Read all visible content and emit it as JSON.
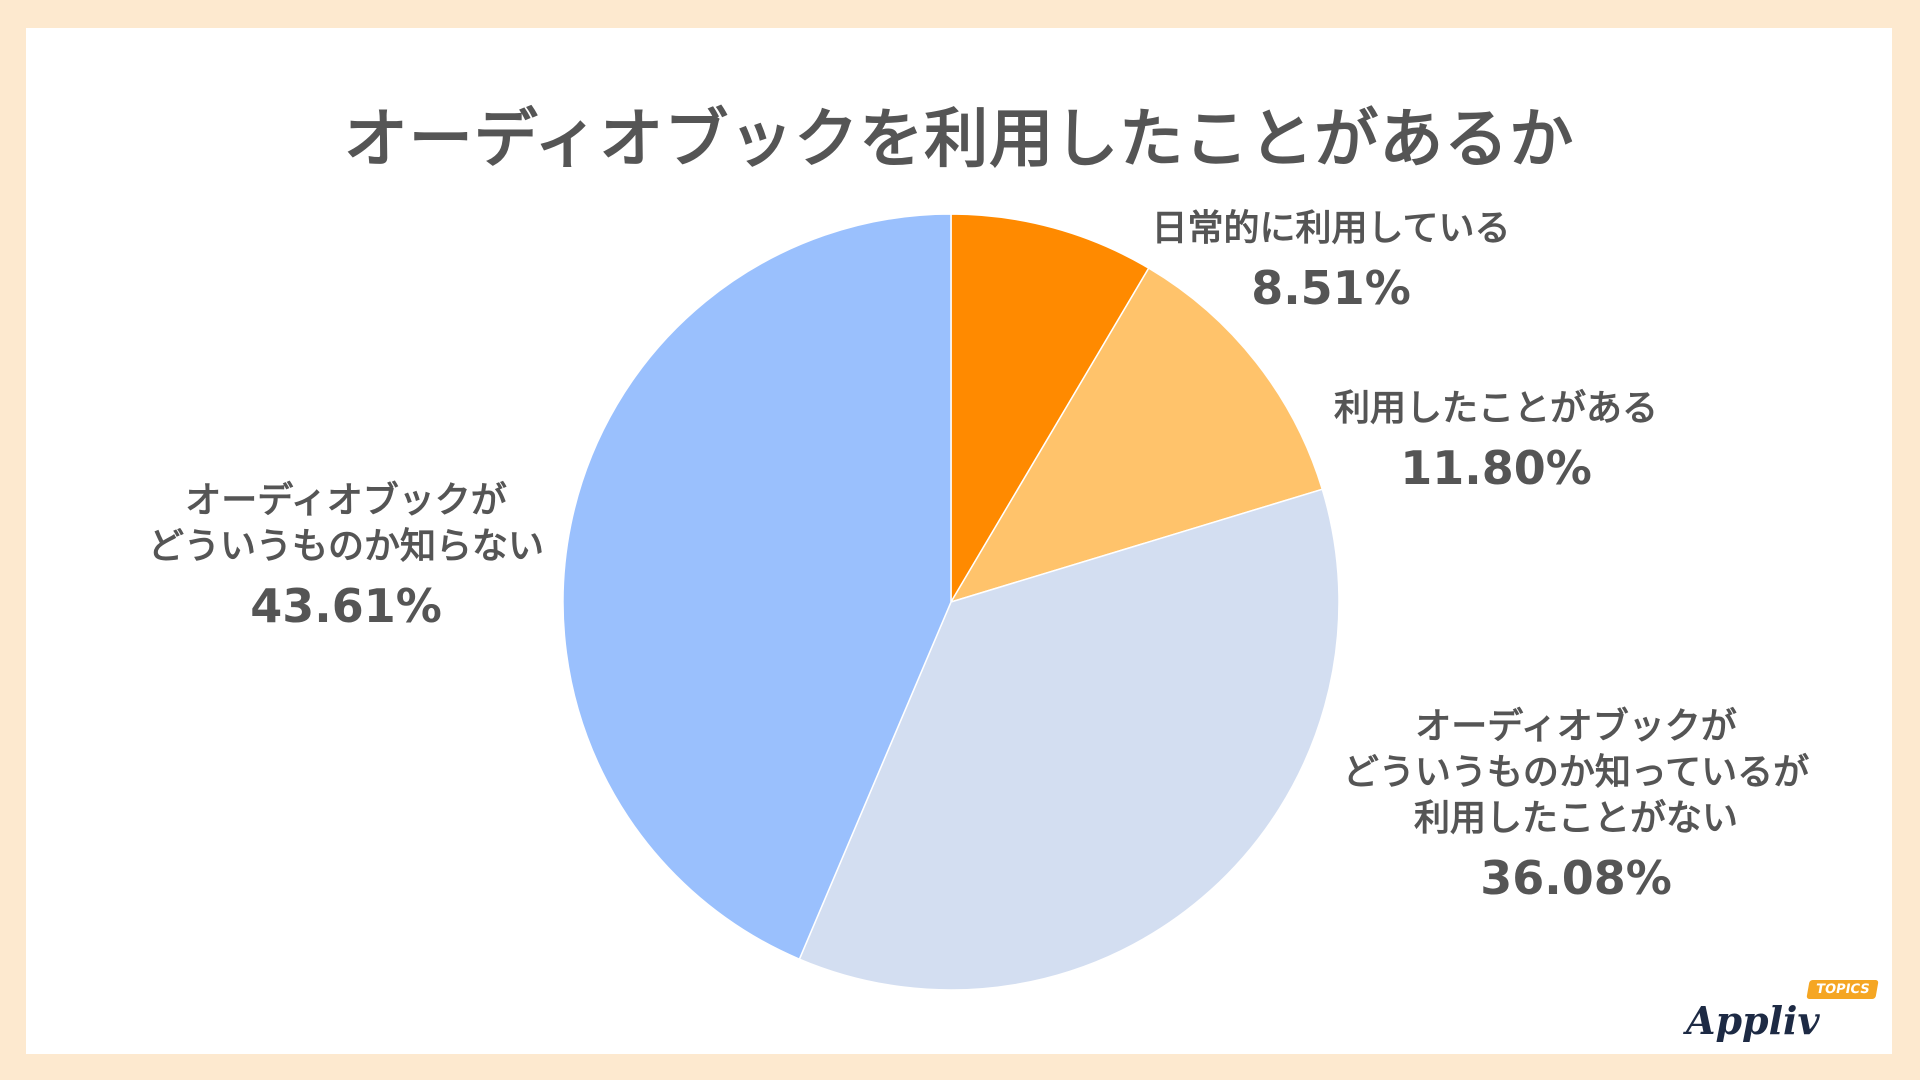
{
  "chart_data": {
    "type": "pie",
    "title": "オーディオブックを利用したことがあるか",
    "start_angle_deg": 0,
    "direction": "clockwise",
    "slices": [
      {
        "label": "日常的に利用している",
        "value": 8.51,
        "value_label": "8.51%",
        "color": "#ff8a00"
      },
      {
        "label": "利用したことがある",
        "value": 11.8,
        "value_label": "11.80%",
        "color": "#ffc36b"
      },
      {
        "label": "オーディオブックが\nどういうものか知っているが\n利用したことがない",
        "value": 36.08,
        "value_label": "36.08%",
        "color": "#d3def1"
      },
      {
        "label": "オーディオブックが\nどういうものか知らない",
        "value": 43.61,
        "value_label": "43.61%",
        "color": "#9ac0fd"
      }
    ]
  },
  "logo": {
    "wordmark": "Appliv",
    "badge": "TOPICS"
  }
}
